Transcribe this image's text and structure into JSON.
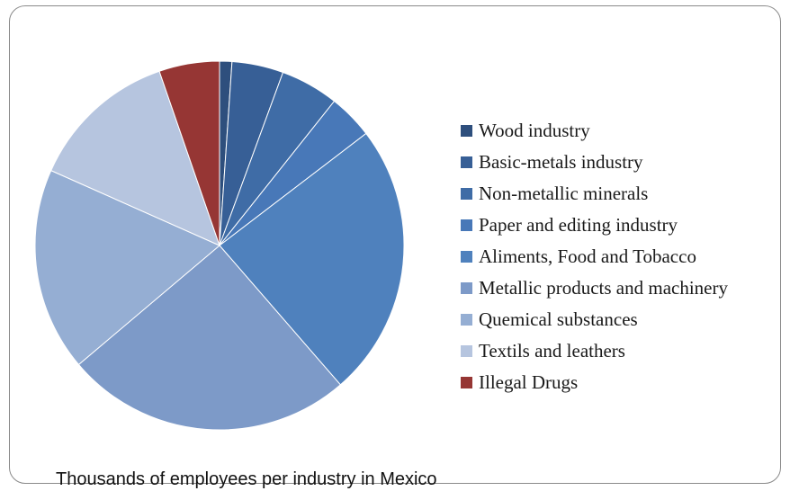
{
  "chart_data": {
    "type": "pie",
    "title": "",
    "caption": "Thousands of employees per industry in Mexico",
    "legend_position": "right",
    "categories": [
      "Wood industry",
      "Basic-metals industry",
      "Non-metallic minerals",
      "Paper and editing industry",
      "Aliments, Food and Tobacco",
      "Metallic products and machinery",
      "Quemical substances",
      "Textils and leathers",
      "Illegal Drugs"
    ],
    "values": [
      1.1,
      4.6,
      5.2,
      4.0,
      24.5,
      25.7,
      18.2,
      13.3,
      5.4
    ],
    "colors": [
      "#2e4f7d",
      "#375f96",
      "#3f6ca6",
      "#4878b8",
      "#4f81bd",
      "#7d9ac8",
      "#95aed3",
      "#b6c5df",
      "#963634"
    ]
  }
}
